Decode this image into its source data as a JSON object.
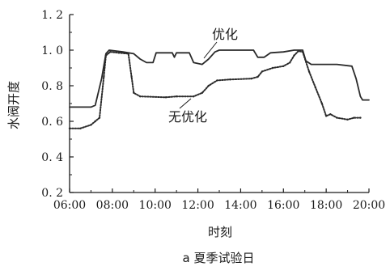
{
  "chart_data": {
    "type": "line",
    "caption": "a 夏季试验日",
    "xlabel": "时刻",
    "ylabel": "水阀开度",
    "xlim": [
      6,
      20
    ],
    "ylim": [
      0.2,
      1.2
    ],
    "x_ticks": [
      "06:00",
      "08:00",
      "10:00",
      "12:00",
      "14:00",
      "16:00",
      "18:00",
      "20:00"
    ],
    "y_ticks": [
      "0.2",
      "0.4",
      "0.6",
      "0.8",
      "1.0",
      "1.2"
    ],
    "annotations": [
      "优化",
      "无优化"
    ],
    "series": [
      {
        "name": "优化",
        "style": "solid",
        "points": [
          [
            6.0,
            0.68
          ],
          [
            7.0,
            0.68
          ],
          [
            7.2,
            0.69
          ],
          [
            7.5,
            0.84
          ],
          [
            7.7,
            0.98
          ],
          [
            7.85,
            1.0
          ],
          [
            8.5,
            0.99
          ],
          [
            9.0,
            0.98
          ],
          [
            9.3,
            0.95
          ],
          [
            9.6,
            0.93
          ],
          [
            9.9,
            0.93
          ],
          [
            10.05,
            0.985
          ],
          [
            10.8,
            0.985
          ],
          [
            10.9,
            0.96
          ],
          [
            11.0,
            0.985
          ],
          [
            11.6,
            0.985
          ],
          [
            11.8,
            0.93
          ],
          [
            12.2,
            0.92
          ],
          [
            12.5,
            0.95
          ],
          [
            12.8,
            0.99
          ],
          [
            13.0,
            1.0
          ],
          [
            14.6,
            1.0
          ],
          [
            14.8,
            0.96
          ],
          [
            15.1,
            0.96
          ],
          [
            15.4,
            0.985
          ],
          [
            16.0,
            0.99
          ],
          [
            16.5,
            1.0
          ],
          [
            16.9,
            1.0
          ],
          [
            17.05,
            0.94
          ],
          [
            17.3,
            0.92
          ],
          [
            18.5,
            0.92
          ],
          [
            19.2,
            0.91
          ],
          [
            19.4,
            0.84
          ],
          [
            19.6,
            0.74
          ],
          [
            19.7,
            0.72
          ],
          [
            20.0,
            0.72
          ]
        ]
      },
      {
        "name": "无优化",
        "style": "dotted",
        "points": [
          [
            6.0,
            0.56
          ],
          [
            6.5,
            0.56
          ],
          [
            7.0,
            0.58
          ],
          [
            7.2,
            0.6
          ],
          [
            7.4,
            0.62
          ],
          [
            7.6,
            0.85
          ],
          [
            7.7,
            0.97
          ],
          [
            7.9,
            0.99
          ],
          [
            8.3,
            0.985
          ],
          [
            8.75,
            0.98
          ],
          [
            8.9,
            0.85
          ],
          [
            9.0,
            0.76
          ],
          [
            9.3,
            0.74
          ],
          [
            10.5,
            0.735
          ],
          [
            11.0,
            0.74
          ],
          [
            11.8,
            0.74
          ],
          [
            12.2,
            0.76
          ],
          [
            12.5,
            0.8
          ],
          [
            12.9,
            0.83
          ],
          [
            13.5,
            0.835
          ],
          [
            14.5,
            0.84
          ],
          [
            14.8,
            0.85
          ],
          [
            15.0,
            0.88
          ],
          [
            15.5,
            0.9
          ],
          [
            16.0,
            0.91
          ],
          [
            16.3,
            0.93
          ],
          [
            16.5,
            0.97
          ],
          [
            16.7,
            0.995
          ],
          [
            16.9,
            0.99
          ],
          [
            17.2,
            0.88
          ],
          [
            17.5,
            0.79
          ],
          [
            17.8,
            0.7
          ],
          [
            18.0,
            0.63
          ],
          [
            18.2,
            0.64
          ],
          [
            18.5,
            0.62
          ],
          [
            19.0,
            0.61
          ],
          [
            19.3,
            0.62
          ],
          [
            19.6,
            0.62
          ]
        ]
      }
    ]
  }
}
